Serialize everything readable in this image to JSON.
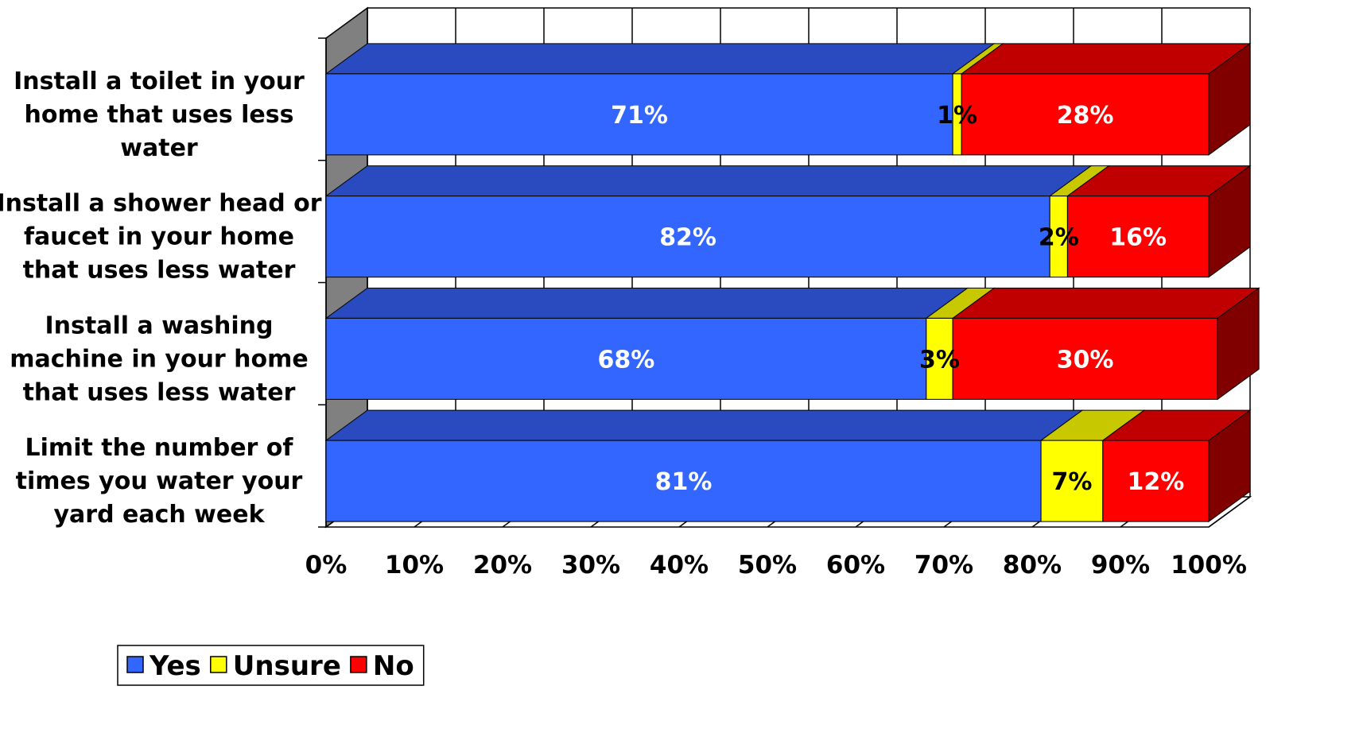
{
  "chart_data": {
    "type": "bar",
    "orientation": "horizontal",
    "stacked": true,
    "percent_stacked": true,
    "three_d": true,
    "categories": [
      [
        "Install a toilet in your",
        "home that uses less",
        "water"
      ],
      [
        "Install a shower head or",
        "faucet in your home",
        "that uses less water"
      ],
      [
        "Install a washing",
        "machine in your home",
        "that uses less water"
      ],
      [
        "Limit the number of",
        "times you water your",
        "yard each week"
      ]
    ],
    "series": [
      {
        "name": "Yes",
        "values": [
          71,
          82,
          68,
          81
        ],
        "labels": [
          "71%",
          "82%",
          "68%",
          "81%"
        ],
        "color": "#3366FF",
        "top": "#2A4BBF",
        "side": "#1F3A9A",
        "label_color": "#FFFFFF"
      },
      {
        "name": "Unsure",
        "values": [
          1,
          2,
          3,
          7
        ],
        "labels": [
          "1%",
          "2%",
          "3%",
          "7%"
        ],
        "color": "#FFFF00",
        "top": "#C8C800",
        "side": "#9A9A00",
        "label_color": "#000000"
      },
      {
        "name": "No",
        "values": [
          28,
          16,
          30,
          12
        ],
        "labels": [
          "28%",
          "16%",
          "30%",
          "12%"
        ],
        "color": "#FF0000",
        "top": "#C00000",
        "side": "#800000",
        "label_color": "#FFFFFF"
      }
    ],
    "x_ticks": [
      "0%",
      "10%",
      "20%",
      "30%",
      "40%",
      "50%",
      "60%",
      "70%",
      "80%",
      "90%",
      "100%"
    ],
    "xlim": [
      0,
      100
    ],
    "grid": true,
    "legend_position": "bottom-left"
  }
}
